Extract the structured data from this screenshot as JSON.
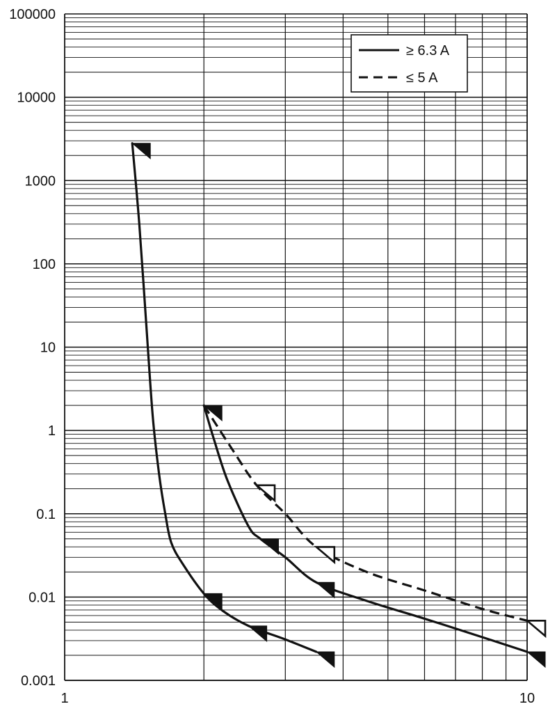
{
  "chart_data": {
    "type": "line",
    "title": "",
    "xlabel": "",
    "ylabel": "",
    "x_scale": "log",
    "y_scale": "log",
    "xlim": [
      1,
      10
    ],
    "ylim": [
      0.001,
      100000
    ],
    "grid": true,
    "legend_position": "top-right",
    "x_ticks": [
      {
        "value": 1,
        "label": "1"
      },
      {
        "value": 10,
        "label": "10"
      }
    ],
    "y_ticks": [
      {
        "value": 0.001,
        "label": "0.001"
      },
      {
        "value": 0.01,
        "label": "0.01"
      },
      {
        "value": 0.1,
        "label": "0.1"
      },
      {
        "value": 1,
        "label": "1"
      },
      {
        "value": 10,
        "label": "10"
      },
      {
        "value": 100,
        "label": "100"
      },
      {
        "value": 1000,
        "label": "1000"
      },
      {
        "value": 10000,
        "label": "10000"
      },
      {
        "value": 100000,
        "label": "100000"
      }
    ],
    "series": [
      {
        "name": "≥ 6.3 A",
        "style": "solid",
        "marker": "filled-triangle",
        "curves": [
          [
            [
              1.4,
              2800
            ],
            [
              1.45,
              300
            ],
            [
              1.5,
              20
            ],
            [
              1.55,
              1.5
            ],
            [
              1.6,
              0.3
            ],
            [
              1.65,
              0.1
            ],
            [
              1.7,
              0.045
            ],
            [
              1.8,
              0.025
            ],
            [
              2.0,
              0.011
            ],
            [
              2.2,
              0.0068
            ],
            [
              2.5,
              0.0045
            ],
            [
              3.0,
              0.0031
            ],
            [
              3.5,
              0.0022
            ]
          ],
          [
            [
              2.0,
              2.0
            ],
            [
              2.1,
              0.8
            ],
            [
              2.25,
              0.25
            ],
            [
              2.5,
              0.07
            ],
            [
              2.65,
              0.05
            ],
            [
              3.0,
              0.03
            ],
            [
              3.5,
              0.015
            ],
            [
              4.5,
              0.009
            ],
            [
              6.0,
              0.0055
            ],
            [
              8.0,
              0.0033
            ],
            [
              10.0,
              0.0022
            ]
          ]
        ],
        "markers": [
          [
            1.4,
            2800
          ],
          [
            2.0,
            0.011
          ],
          [
            2.5,
            0.0045
          ],
          [
            3.5,
            0.0022
          ],
          [
            2.0,
            2.0
          ],
          [
            2.65,
            0.05
          ],
          [
            3.5,
            0.015
          ],
          [
            10.0,
            0.0022
          ]
        ]
      },
      {
        "name": "≤ 5 A",
        "style": "dashed",
        "marker": "open-triangle",
        "curves": [
          [
            [
              2.0,
              2.0
            ],
            [
              2.3,
              0.6
            ],
            [
              2.6,
              0.22
            ],
            [
              3.0,
              0.1
            ],
            [
              3.5,
              0.04
            ],
            [
              4.5,
              0.02
            ],
            [
              6.0,
              0.012
            ],
            [
              8.0,
              0.0072
            ],
            [
              10.0,
              0.0052
            ]
          ]
        ],
        "markers": [
          [
            2.6,
            0.22
          ],
          [
            3.5,
            0.04
          ],
          [
            10.0,
            0.0052
          ]
        ]
      }
    ]
  }
}
